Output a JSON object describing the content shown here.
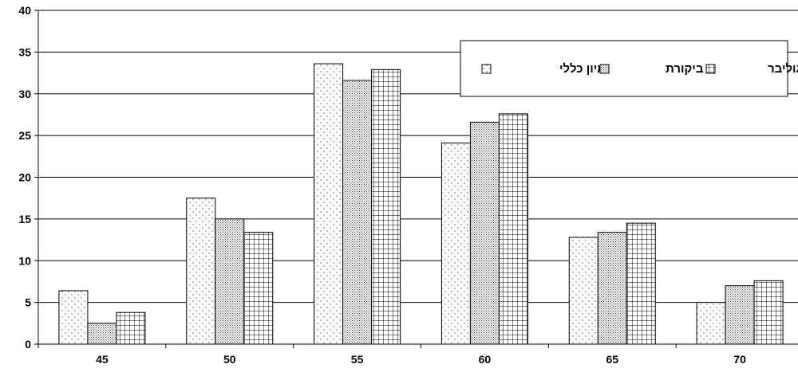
{
  "chart_data": {
    "type": "bar",
    "title": "",
    "xlabel": "",
    "ylabel": "",
    "categories": [
      "45",
      "50",
      "55",
      "60",
      "65",
      "70"
    ],
    "ylim": [
      0,
      40
    ],
    "yticks": [
      0,
      5,
      10,
      15,
      20,
      25,
      30,
      35,
      40
    ],
    "grid": true,
    "legend_position": "top-right",
    "series": [
      {
        "name": "מיון כללי",
        "pattern": "dots-sparse",
        "values": [
          6.4,
          17.5,
          33.6,
          24.1,
          12.8,
          5.0
        ]
      },
      {
        "name": "ביקורת",
        "pattern": "dots-dense",
        "values": [
          2.5,
          15.0,
          31.6,
          26.6,
          13.4,
          7.0
        ]
      },
      {
        "name": "גוליבר",
        "pattern": "grid",
        "values": [
          3.8,
          13.4,
          32.9,
          27.6,
          14.5,
          7.6
        ]
      }
    ]
  }
}
